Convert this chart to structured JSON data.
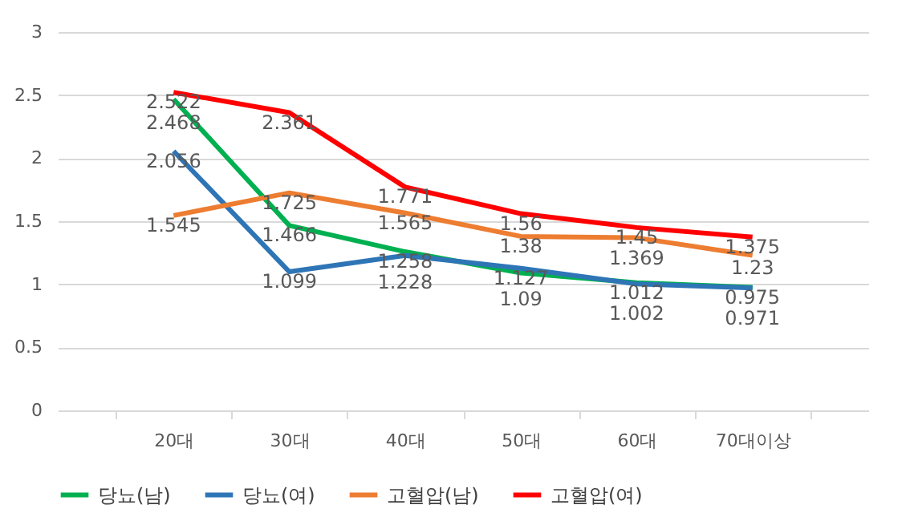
{
  "chart_data": {
    "type": "line",
    "categories": [
      "20대",
      "30대",
      "40대",
      "50대",
      "60대",
      "70대이상"
    ],
    "series": [
      {
        "name": "당뇨(남)",
        "color": "#00b050",
        "values": [
          2.468,
          1.466,
          1.258,
          1.09,
          1.012,
          0.975
        ]
      },
      {
        "name": "당뇨(여)",
        "color": "#2e75b6",
        "values": [
          2.056,
          1.099,
          1.228,
          1.127,
          1.002,
          0.971
        ]
      },
      {
        "name": "고혈압(남)",
        "color": "#ed7d31",
        "values": [
          1.545,
          1.725,
          1.565,
          1.38,
          1.369,
          1.23
        ]
      },
      {
        "name": "고혈압(여)",
        "color": "#ff0000",
        "values": [
          2.522,
          2.361,
          1.771,
          1.56,
          1.45,
          1.375
        ]
      }
    ],
    "ylim": [
      0,
      3
    ],
    "yticks": [
      0,
      0.5,
      1,
      1.5,
      2,
      2.5,
      3
    ],
    "grid": "y",
    "legend": "bottom",
    "data_labels": true,
    "marker": "none",
    "line_style": "solid"
  }
}
